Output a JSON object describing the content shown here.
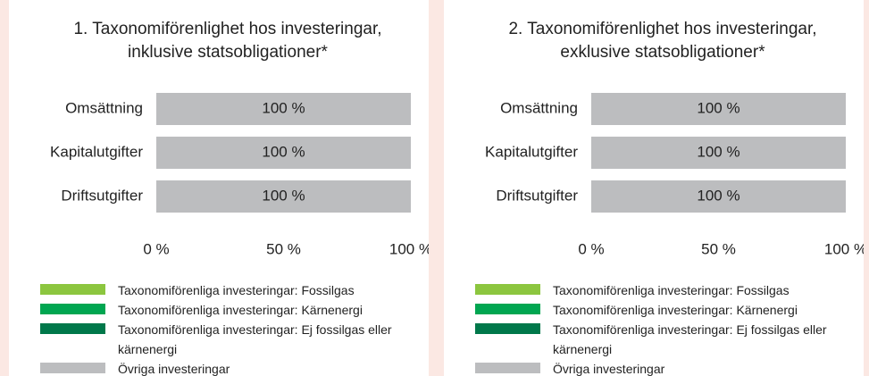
{
  "chart_data": [
    {
      "type": "bar",
      "orientation": "horizontal",
      "stacked": true,
      "title": "1. Taxonomiförenlighet hos investeringar, inklusive statsobligationer*",
      "categories": [
        "Omsättning",
        "Kapitalutgifter",
        "Driftsutgifter"
      ],
      "series": [
        {
          "name": "Taxonomiförenliga investeringar: Fossilgas",
          "color": "#8cc63f",
          "values": [
            0,
            0,
            0
          ]
        },
        {
          "name": "Taxonomiförenliga investeringar: Kärnenergi",
          "color": "#00a651",
          "values": [
            0,
            0,
            0
          ]
        },
        {
          "name": "Taxonomiförenliga investeringar: Ej fossilgas eller kärnenergi",
          "color": "#00784a",
          "values": [
            0,
            0,
            0
          ]
        },
        {
          "name": "Övriga investeringar",
          "color": "#bcbdbf",
          "values": [
            100,
            100,
            100
          ],
          "value_labels": [
            "100 %",
            "100 %",
            "100 %"
          ]
        }
      ],
      "xlim": [
        0,
        100
      ],
      "xticks": [
        {
          "value": 0,
          "label": "0 %"
        },
        {
          "value": 50,
          "label": "50 %"
        },
        {
          "value": 100,
          "label": "100 %"
        }
      ]
    },
    {
      "type": "bar",
      "orientation": "horizontal",
      "stacked": true,
      "title": "2. Taxonomiförenlighet hos investeringar, exklusive statsobligationer*",
      "categories": [
        "Omsättning",
        "Kapitalutgifter",
        "Driftsutgifter"
      ],
      "series": [
        {
          "name": "Taxonomiförenliga investeringar: Fossilgas",
          "color": "#8cc63f",
          "values": [
            0,
            0,
            0
          ]
        },
        {
          "name": "Taxonomiförenliga investeringar: Kärnenergi",
          "color": "#00a651",
          "values": [
            0,
            0,
            0
          ]
        },
        {
          "name": "Taxonomiförenliga investeringar: Ej fossilgas eller kärnenergi",
          "color": "#00784a",
          "values": [
            0,
            0,
            0
          ]
        },
        {
          "name": "Övriga investeringar",
          "color": "#bcbdbf",
          "values": [
            100,
            100,
            100
          ],
          "value_labels": [
            "100 %",
            "100 %",
            "100 %"
          ]
        }
      ],
      "xlim": [
        0,
        100
      ],
      "xticks": [
        {
          "value": 0,
          "label": "0 %"
        },
        {
          "value": 50,
          "label": "50 %"
        },
        {
          "value": 100,
          "label": "100 %"
        }
      ]
    }
  ]
}
